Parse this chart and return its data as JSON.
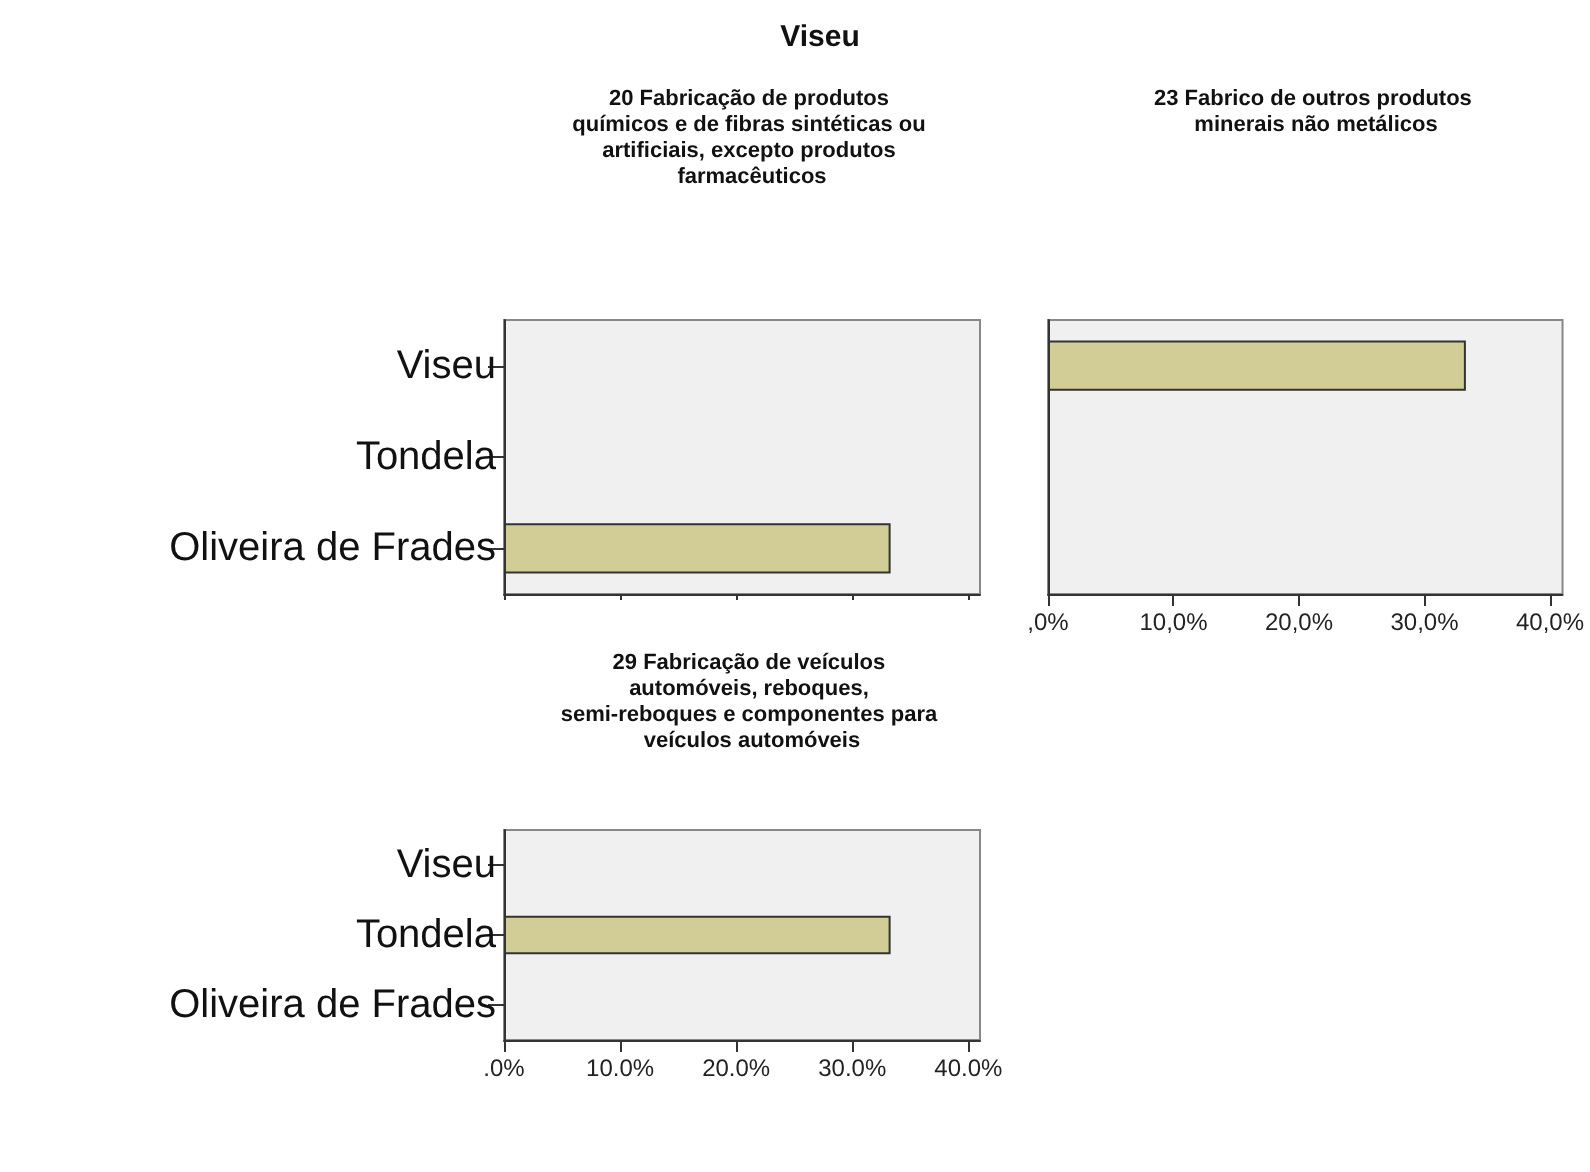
{
  "chart_data": [
    {
      "type": "bar",
      "orientation": "horizontal",
      "title": "Viseu",
      "subtitle": "20 Fabricação de produtos químicos e de fibras sintéticas ou artificiais, excepto produtos farmacêuticos",
      "categories": [
        "Viseu",
        "Tondela",
        "Oliveira de Frades"
      ],
      "series": [
        {
          "color": "#d2cd96",
          "values": [
            null,
            null,
            33.3
          ]
        }
      ],
      "xlim": [
        0,
        41
      ],
      "xticks": [
        {
          "value": 0,
          "label": null
        },
        {
          "value": 10,
          "label": null
        },
        {
          "value": 20,
          "label": null
        },
        {
          "value": 30,
          "label": null
        },
        {
          "value": 40,
          "label": null
        }
      ],
      "tick_labels": "y",
      "grid": false
    },
    {
      "type": "bar",
      "orientation": "horizontal",
      "title": "23 Fabrico de outros produtos minerais não metálicos",
      "categories": [
        null,
        null,
        null
      ],
      "series": [
        {
          "color": "#d2cd96",
          "values": [
            33.3,
            null,
            null
          ]
        }
      ],
      "xlim": [
        0,
        41
      ],
      "xticks": [
        {
          "value": 0,
          "label": ",0%"
        },
        {
          "value": 10,
          "label": "10,0%"
        },
        {
          "value": 20,
          "label": "20,0%"
        },
        {
          "value": 30,
          "label": "30,0%"
        },
        {
          "value": 40,
          "label": "40,0%"
        }
      ],
      "tick_labels": "x",
      "grid": false
    },
    {
      "type": "bar",
      "orientation": "horizontal",
      "title": "29 Fabricação de veículos automóveis, reboques, semi-reboques e componentes para veículos automóveis",
      "categories": [
        "Viseu",
        "Tondela",
        "Oliveira de Frades"
      ],
      "series": [
        {
          "color": "#d2cd96",
          "values": [
            null,
            33.3,
            null
          ]
        }
      ],
      "xlim": [
        0,
        41
      ],
      "xticks": [
        {
          "value": 0,
          "label": ".0%"
        },
        {
          "value": 10,
          "label": "10.0%"
        },
        {
          "value": 20,
          "label": "20.0%"
        },
        {
          "value": 30,
          "label": "30.0%"
        },
        {
          "value": 40,
          "label": "40.0%"
        }
      ],
      "grid": false
    }
  ]
}
